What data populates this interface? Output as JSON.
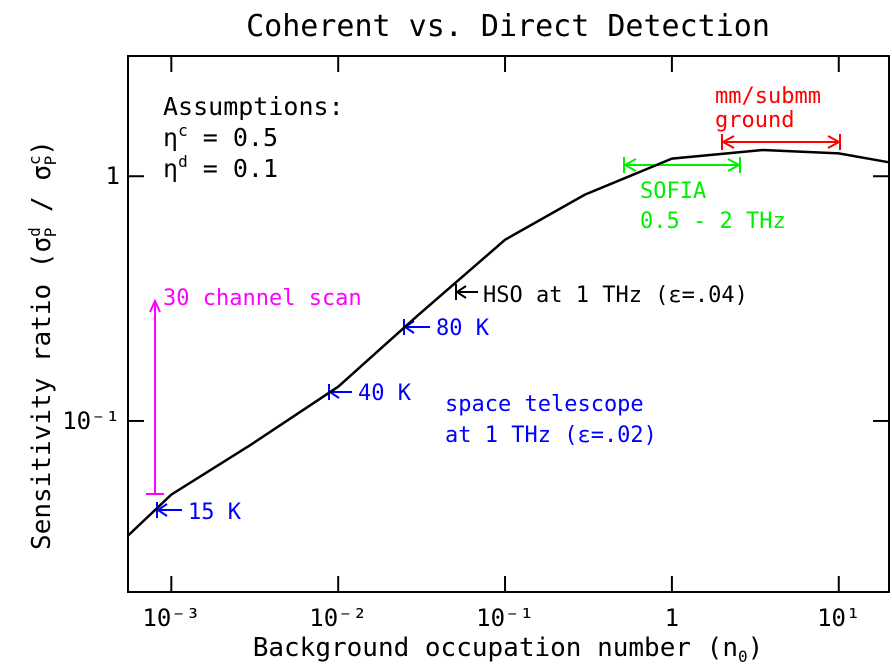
{
  "chart_data": {
    "type": "line",
    "title": "Coherent vs. Direct Detection",
    "xlabel": [
      "Background occupation number (n",
      "0",
      ")"
    ],
    "ylabel": [
      "Sensitivity ratio (σ",
      "d",
      "P",
      " / σ",
      "c",
      "P",
      ")"
    ],
    "x": [
      0.00055,
      0.001,
      0.003,
      0.01,
      0.03,
      0.1,
      0.3,
      1,
      3.5,
      10,
      20
    ],
    "values": [
      0.034,
      0.05,
      0.08,
      0.138,
      0.27,
      0.55,
      0.84,
      1.18,
      1.28,
      1.24,
      1.14
    ],
    "color": "#000000",
    "log_x": true,
    "log_y": true,
    "xlim": [
      0.00055,
      20
    ],
    "ylim": [
      0.02,
      3.1
    ],
    "xticks": [
      {
        "value": 0.001,
        "label": "10⁻³"
      },
      {
        "value": 0.01,
        "label": "10⁻²"
      },
      {
        "value": 0.1,
        "label": "10⁻¹"
      },
      1,
      {
        "value": 10,
        "label": "10¹"
      }
    ],
    "yticks": [
      {
        "value": 0.1,
        "label": "10⁻¹"
      },
      1
    ],
    "annotations": {
      "assumptions": "Assumptions:",
      "eta_c": [
        "η",
        "c",
        " = 0.5"
      ],
      "eta_d": [
        "η",
        "d",
        " = 0.1"
      ],
      "mm": [
        "mm/submm",
        "ground"
      ],
      "sofia": [
        "SOFIA",
        "0.5 - 2 THz"
      ],
      "hso": "HSO at 1 THz (ε=.04)",
      "k80": "80 K",
      "k40": "40 K",
      "space": [
        "space telescope",
        "at 1 THz (ε=.02)"
      ],
      "k15": "15 K",
      "scan": "30 channel scan"
    }
  }
}
